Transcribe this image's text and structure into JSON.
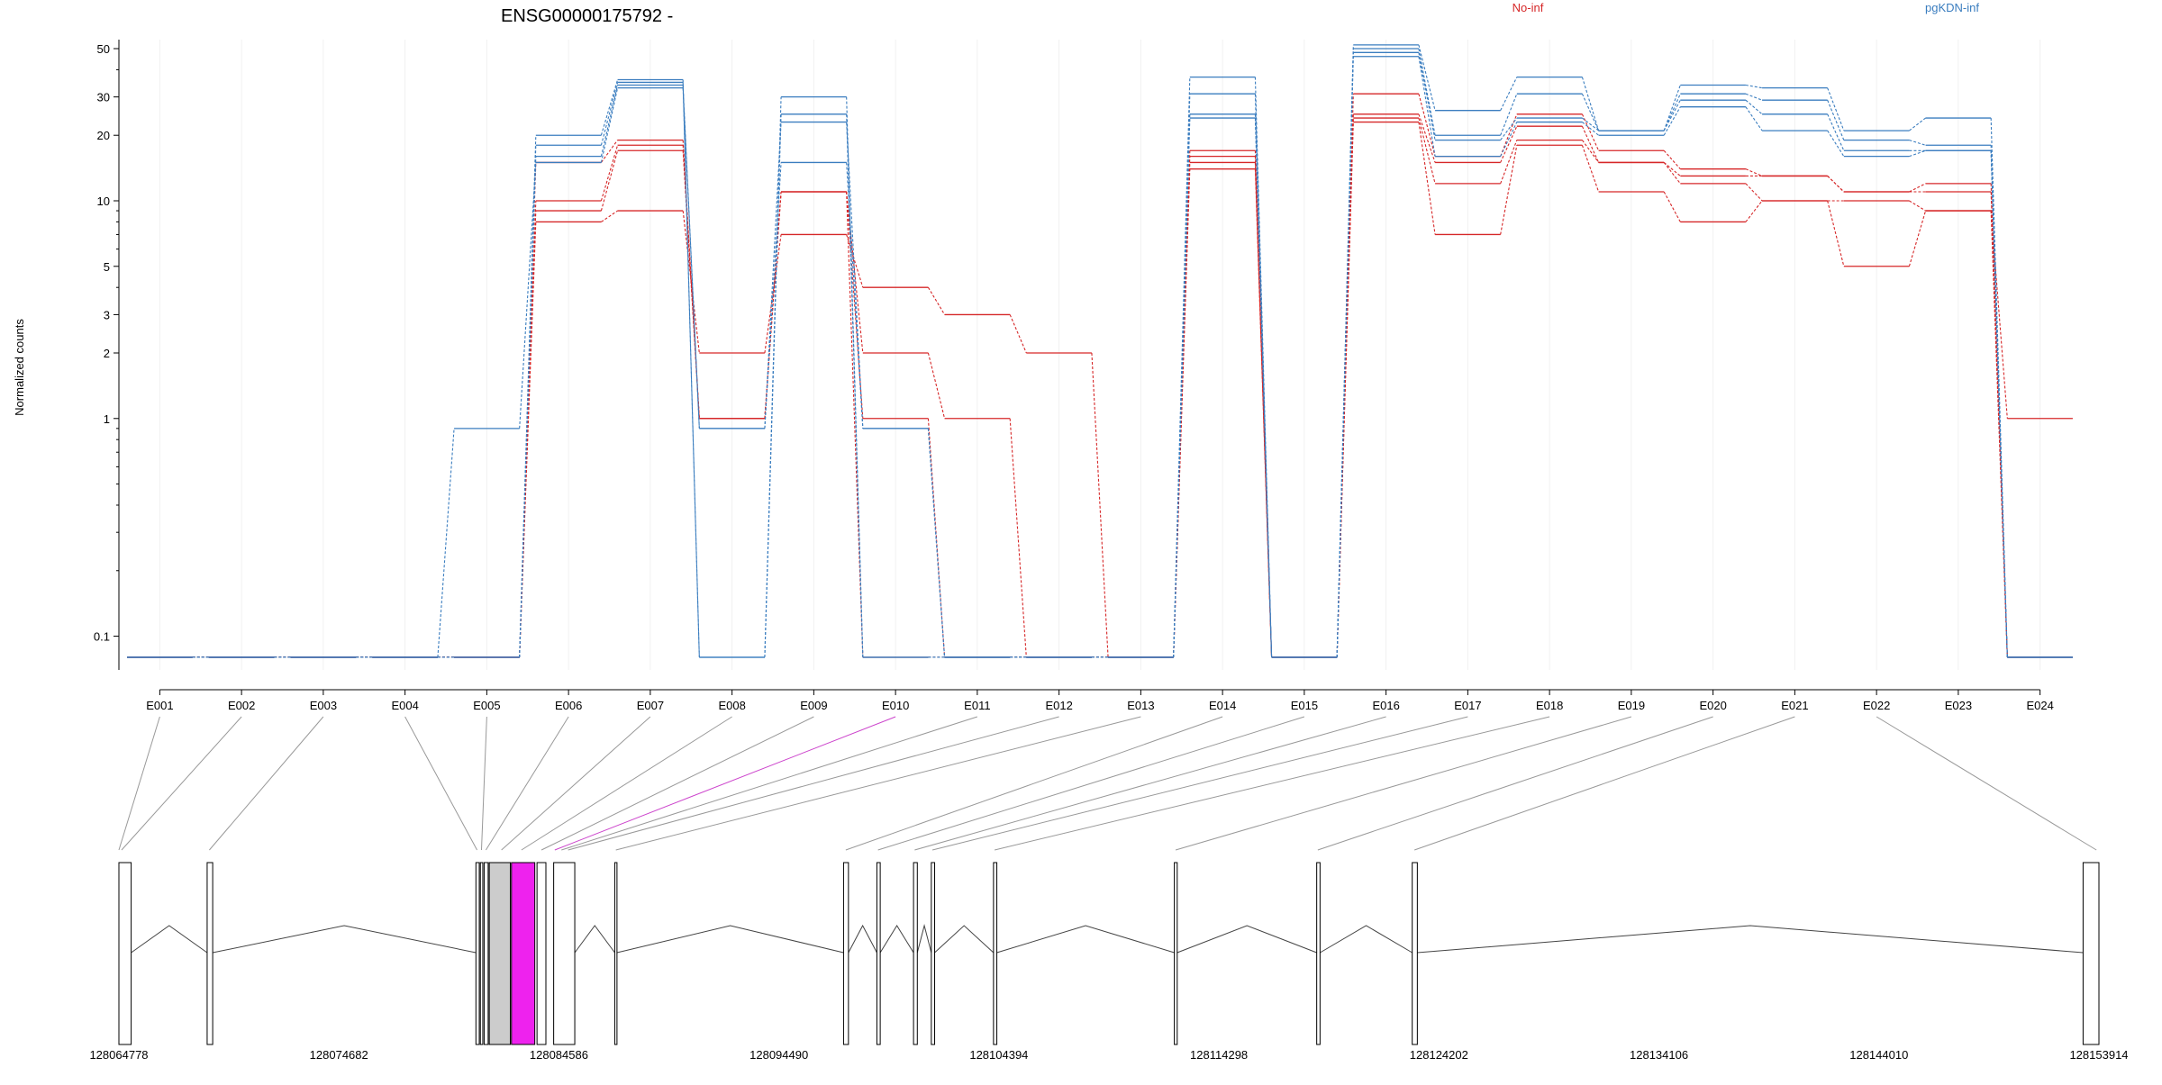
{
  "chart_data": {
    "type": "line",
    "title": "ENSG00000175792 -",
    "ylabel": "Normalized counts",
    "yscale": "log",
    "ylim": [
      0.07,
      55
    ],
    "y_ticks": [
      0.1,
      1,
      2,
      3,
      5,
      10,
      20,
      30,
      50
    ],
    "y_tick_labels": [
      "0.1",
      "1",
      "2",
      "3",
      "5",
      "10",
      "20",
      "30",
      "50"
    ],
    "categories": [
      "E001",
      "E002",
      "E003",
      "E004",
      "E005",
      "E006",
      "E007",
      "E008",
      "E009",
      "E010",
      "E011",
      "E012",
      "E013",
      "E014",
      "E015",
      "E016",
      "E017",
      "E018",
      "E019",
      "E020",
      "E021",
      "E022",
      "E023",
      "E024"
    ],
    "highlight_exon": "E010",
    "legend": [
      {
        "label": "No-inf",
        "color": "#d62728"
      },
      {
        "label": "pgKDN-inf",
        "color": "#3a7dbf"
      }
    ],
    "series": [
      {
        "group": "No-inf",
        "color": "#d62728",
        "values": [
          0.08,
          0.08,
          0.08,
          0.08,
          0.08,
          8.0,
          9.0,
          2.0,
          7.0,
          4.0,
          3.0,
          2.0,
          0.08,
          14.0,
          0.08,
          23.0,
          7.0,
          18.0,
          11.0,
          8.0,
          10.0,
          5.0,
          9.0,
          1.0
        ]
      },
      {
        "group": "No-inf",
        "color": "#d62728",
        "values": [
          0.08,
          0.08,
          0.08,
          0.08,
          0.08,
          9.0,
          17.0,
          1.0,
          11.0,
          2.0,
          1.0,
          0.08,
          0.08,
          15.0,
          0.08,
          24.0,
          12.0,
          19.0,
          15.0,
          12.0,
          10.0,
          10.0,
          9.0,
          0.08
        ]
      },
      {
        "group": "No-inf",
        "color": "#d62728",
        "values": [
          0.08,
          0.08,
          0.08,
          0.08,
          0.08,
          10.0,
          18.0,
          1.0,
          11.0,
          1.0,
          0.08,
          0.08,
          0.08,
          16.0,
          0.08,
          25.0,
          15.0,
          22.0,
          15.0,
          13.0,
          13.0,
          11.0,
          11.0,
          0.08
        ]
      },
      {
        "group": "No-inf",
        "color": "#d62728",
        "values": [
          0.08,
          0.08,
          0.08,
          0.08,
          0.08,
          15.0,
          19.0,
          1.0,
          11.0,
          0.08,
          0.08,
          0.08,
          0.08,
          17.0,
          0.08,
          31.0,
          16.0,
          25.0,
          17.0,
          14.0,
          13.0,
          11.0,
          12.0,
          0.08
        ]
      },
      {
        "group": "pgKDN-inf",
        "color": "#3a7dbf",
        "values": [
          0.08,
          0.08,
          0.08,
          0.08,
          0.9,
          15.0,
          33.0,
          0.9,
          15.0,
          0.9,
          0.08,
          0.08,
          0.08,
          24.0,
          0.08,
          46.0,
          16.0,
          23.0,
          20.0,
          27.0,
          21.0,
          16.0,
          17.0,
          0.08
        ]
      },
      {
        "group": "pgKDN-inf",
        "color": "#3a7dbf",
        "values": [
          0.08,
          0.08,
          0.08,
          0.08,
          0.08,
          16.0,
          34.0,
          0.9,
          23.0,
          0.9,
          0.08,
          0.08,
          0.08,
          25.0,
          0.08,
          48.0,
          19.0,
          24.0,
          21.0,
          29.0,
          25.0,
          17.0,
          17.0,
          0.08
        ]
      },
      {
        "group": "pgKDN-inf",
        "color": "#3a7dbf",
        "values": [
          0.08,
          0.08,
          0.08,
          0.08,
          0.08,
          18.0,
          35.0,
          0.08,
          25.0,
          0.08,
          0.08,
          0.08,
          0.08,
          31.0,
          0.08,
          50.0,
          20.0,
          31.0,
          21.0,
          31.0,
          29.0,
          19.0,
          18.0,
          0.08
        ]
      },
      {
        "group": "pgKDN-inf",
        "color": "#3a7dbf",
        "values": [
          0.08,
          0.08,
          0.08,
          0.08,
          0.08,
          20.0,
          36.0,
          0.08,
          30.0,
          0.08,
          0.08,
          0.08,
          0.08,
          37.0,
          0.08,
          52.0,
          26.0,
          37.0,
          21.0,
          34.0,
          33.0,
          21.0,
          24.0,
          0.08
        ]
      }
    ],
    "gene_model": {
      "coordinate_labels": [
        "128064778",
        "128074682",
        "128084586",
        "128094490",
        "128104394",
        "128114298",
        "128124202",
        "128134106",
        "128144010",
        "128153914"
      ],
      "coord_range": [
        128064778,
        128153914
      ],
      "exons": [
        {
          "start": 128064778,
          "end": 128065330
        },
        {
          "start": 128068750,
          "end": 128069000
        },
        {
          "start": 128080850,
          "end": 128081000
        },
        {
          "start": 128081050,
          "end": 128081160
        },
        {
          "start": 128081220,
          "end": 128081400
        },
        {
          "start": 128081450,
          "end": 128082400,
          "fill": "#cccccc"
        },
        {
          "start": 128082450,
          "end": 128083500,
          "fill": "#ee22ee"
        },
        {
          "start": 128083600,
          "end": 128084000
        },
        {
          "start": 128084350,
          "end": 128085300
        },
        {
          "start": 128087100,
          "end": 128087200
        },
        {
          "start": 128097400,
          "end": 128097620
        },
        {
          "start": 128098900,
          "end": 128099050
        },
        {
          "start": 128100550,
          "end": 128100720
        },
        {
          "start": 128101350,
          "end": 128101500
        },
        {
          "start": 128104150,
          "end": 128104300
        },
        {
          "start": 128112290,
          "end": 128112420
        },
        {
          "start": 128118700,
          "end": 128118850
        },
        {
          "start": 128123000,
          "end": 128123230
        },
        {
          "start": 128153200,
          "end": 128153914
        }
      ],
      "introns": [
        {
          "from": 128065330,
          "to": 128068750
        },
        {
          "from": 128069000,
          "to": 128080850
        },
        {
          "from": 128085300,
          "to": 128087100
        },
        {
          "from": 128087200,
          "to": 128097400
        },
        {
          "from": 128097620,
          "to": 128098900
        },
        {
          "from": 128099050,
          "to": 128100550
        },
        {
          "from": 128100720,
          "to": 128101350
        },
        {
          "from": 128101500,
          "to": 128104150
        },
        {
          "from": 128104300,
          "to": 128112290
        },
        {
          "from": 128112420,
          "to": 128118700
        },
        {
          "from": 128118850,
          "to": 128123000
        },
        {
          "from": 128123230,
          "to": 128153200
        }
      ],
      "exon_links": [
        128064778,
        128064900,
        128068850,
        128080900,
        128081100,
        128081300,
        128082000,
        128082900,
        128083800,
        128084400,
        128084700,
        128085000,
        128087150,
        128097500,
        128098950,
        128100600,
        128101400,
        128104200,
        128112350,
        128118750,
        128123100,
        128153800
      ]
    }
  }
}
